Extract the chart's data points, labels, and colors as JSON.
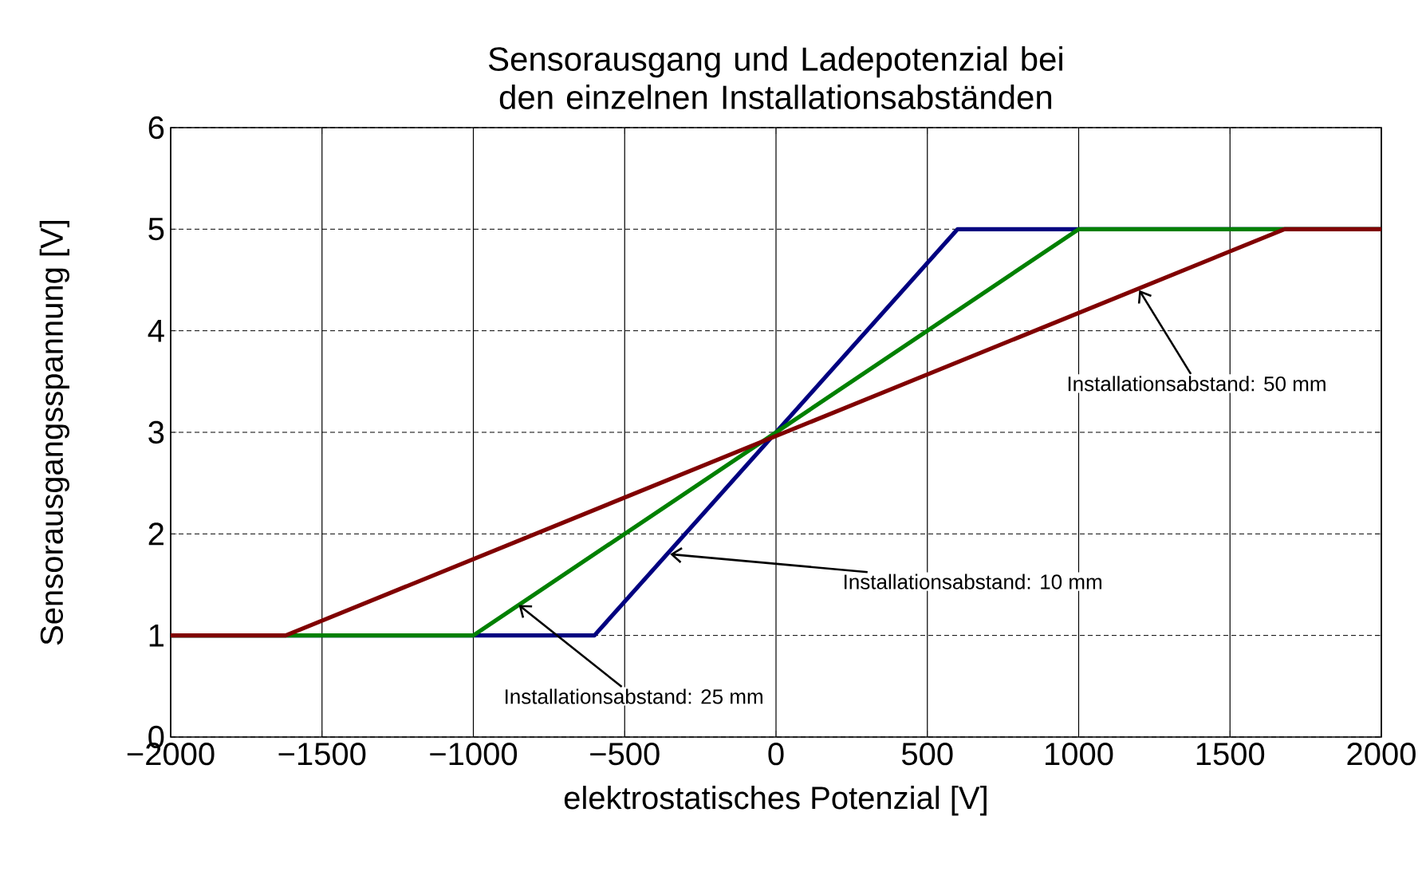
{
  "chart_data": {
    "type": "line",
    "title": "Sensorausgang und Ladepotenzial bei den einzelnen Installationsabständen",
    "xlabel": "elektrostatisches Potenzial [V]",
    "ylabel": "Sensorausgangsspannung [V]",
    "series": [
      {
        "color": "#000080",
        "x": [
          -2000,
          -600,
          600,
          2000
        ],
        "values": [
          1,
          1,
          5,
          5
        ]
      },
      {
        "color": "#008000",
        "x": [
          -2000,
          -1000,
          1000,
          2000
        ],
        "values": [
          1,
          1,
          5,
          5
        ]
      },
      {
        "color": "#800000",
        "x": [
          -2000,
          -1620,
          1680,
          2000
        ],
        "values": [
          1,
          1,
          5,
          5
        ]
      }
    ],
    "annotations": [
      {
        "text": "Installationsabstand: 10 mm",
        "x": -350,
        "y": 1.8
      },
      {
        "text": "Installationsabstand: 25 mm",
        "x": -850,
        "y": 1.3
      },
      {
        "text": "Installationsabstand: 50 mm",
        "x": 1200,
        "y": 4.4
      }
    ],
    "xlim": [
      -2000,
      2000
    ],
    "ylim": [
      0,
      6
    ],
    "xticks": [
      {
        "value": -2000,
        "label": "−2000"
      },
      {
        "value": -1500,
        "label": "−1500"
      },
      {
        "value": -1000,
        "label": "−1000"
      },
      {
        "value": -500,
        "label": "−500"
      },
      0,
      500,
      1000,
      1500,
      2000
    ],
    "yticks": [
      0,
      1,
      2,
      3,
      4,
      5,
      6
    ],
    "grid": true,
    "marker": "none",
    "line_style": "solid"
  }
}
